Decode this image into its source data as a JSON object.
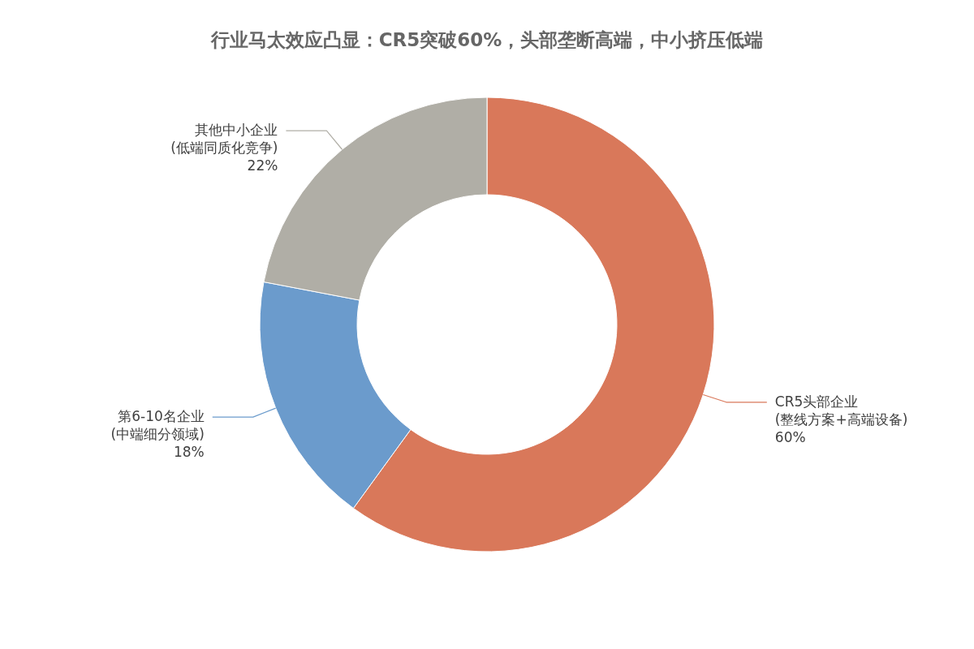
{
  "chart_data": {
    "type": "donut",
    "title": "行业马太效应凸显：CR5突破60%，头部垄断高端，中小挤压低端",
    "categories": [
      "CR5头部企业\n(整线方案+高端设备)",
      "第6-10名企业\n(中端细分领域)",
      "其他中小企业\n(低端同质化竞争)"
    ],
    "values": [
      60,
      18,
      22
    ],
    "colors": [
      "#d9785a",
      "#6b9bcc",
      "#b0aea6"
    ],
    "value_labels": [
      "60%",
      "18%",
      "22%"
    ]
  }
}
